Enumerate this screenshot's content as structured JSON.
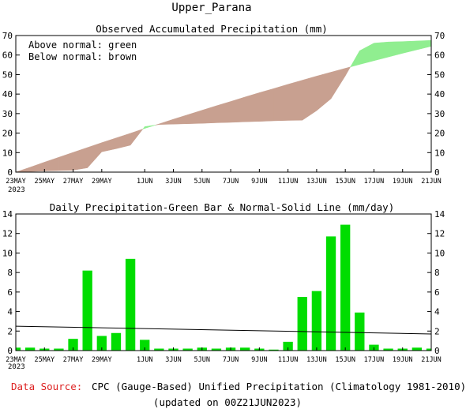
{
  "page_title": "Upper_Parana",
  "footer": {
    "source_label": "Data Source:",
    "source_text": "CPC (Gauge-Based) Unified Precipitation (Climatology 1981-2010)",
    "updated": "(updated on 00Z21JUN2023)"
  },
  "colors": {
    "above_normal": "#90ee90",
    "below_normal": "#c8a090",
    "bar": "#00dd00",
    "source_label": "#dd2222"
  },
  "chart_data": [
    {
      "type": "area",
      "title": "Observed Accumulated Precipitation (mm)",
      "legend_lines": [
        "Above normal: green",
        "Below normal: brown"
      ],
      "ylim": [
        0,
        70
      ],
      "yticks": [
        0,
        10,
        20,
        30,
        40,
        50,
        60,
        70
      ],
      "xlim": [
        0,
        29
      ],
      "xticks": [
        {
          "x": 0,
          "label": "23MAY"
        },
        {
          "x": 2,
          "label": "25MAY"
        },
        {
          "x": 4,
          "label": "27MAY"
        },
        {
          "x": 6,
          "label": "29MAY"
        },
        {
          "x": 9,
          "label": "1JUN"
        },
        {
          "x": 11,
          "label": "3JUN"
        },
        {
          "x": 13,
          "label": "5JUN"
        },
        {
          "x": 15,
          "label": "7JUN"
        },
        {
          "x": 17,
          "label": "9JUN"
        },
        {
          "x": 19,
          "label": "11JUN"
        },
        {
          "x": 21,
          "label": "13JUN"
        },
        {
          "x": 23,
          "label": "15JUN"
        },
        {
          "x": 25,
          "label": "17JUN"
        },
        {
          "x": 27,
          "label": "19JUN"
        },
        {
          "x": 29,
          "label": "21JUN"
        }
      ],
      "year_label": "2023",
      "series": [
        {
          "values": [
            0.3,
            0.6,
            0.8,
            1.0,
            2.2,
            10.4,
            12.0,
            13.8,
            23.3,
            24.4,
            24.6,
            24.8,
            25.0,
            25.3,
            25.5,
            25.8,
            26.0,
            26.3,
            26.5,
            26.6,
            31.5,
            37.6,
            49.3,
            62.2,
            66.1,
            66.7,
            66.9,
            67.2,
            67.5
          ],
          "x_start": 1
        },
        {
          "values": [
            2.5,
            5.1,
            7.6,
            10.1,
            12.6,
            15.1,
            17.5,
            19.9,
            22.4,
            24.7,
            27.1,
            29.4,
            31.7,
            34.0,
            36.2,
            38.5,
            40.7,
            42.8,
            45.0,
            47.1,
            49.2,
            51.2,
            53.2,
            55.2,
            57.1,
            59.0,
            60.9,
            62.7,
            64.5
          ],
          "x_start": 1
        }
      ]
    },
    {
      "type": "bar",
      "title": "Daily Precipitation-Green Bar & Normal-Solid Line (mm/day)",
      "ylim": [
        0,
        14
      ],
      "yticks": [
        0,
        2,
        4,
        6,
        8,
        10,
        12,
        14
      ],
      "xlim": [
        0,
        29
      ],
      "xticks": [
        {
          "x": 0,
          "label": "23MAY"
        },
        {
          "x": 2,
          "label": "25MAY"
        },
        {
          "x": 4,
          "label": "27MAY"
        },
        {
          "x": 6,
          "label": "29MAY"
        },
        {
          "x": 9,
          "label": "1JUN"
        },
        {
          "x": 11,
          "label": "3JUN"
        },
        {
          "x": 13,
          "label": "5JUN"
        },
        {
          "x": 15,
          "label": "7JUN"
        },
        {
          "x": 17,
          "label": "9JUN"
        },
        {
          "x": 19,
          "label": "11JUN"
        },
        {
          "x": 21,
          "label": "13JUN"
        },
        {
          "x": 23,
          "label": "15JUN"
        },
        {
          "x": 25,
          "label": "17JUN"
        },
        {
          "x": 27,
          "label": "19JUN"
        },
        {
          "x": 29,
          "label": "21JUN"
        }
      ],
      "year_label": "2023",
      "bars": [
        0.3,
        0.3,
        0.2,
        0.2,
        1.2,
        8.2,
        1.5,
        1.8,
        9.4,
        1.1,
        0.2,
        0.2,
        0.2,
        0.3,
        0.2,
        0.3,
        0.3,
        0.2,
        0.1,
        0.9,
        5.5,
        6.1,
        11.7,
        12.9,
        3.9,
        0.6,
        0.2,
        0.2,
        0.3,
        0.2
      ],
      "normal_line": [
        {
          "x": 0,
          "y": 2.5
        },
        {
          "x": 29,
          "y": 1.7
        }
      ]
    }
  ]
}
